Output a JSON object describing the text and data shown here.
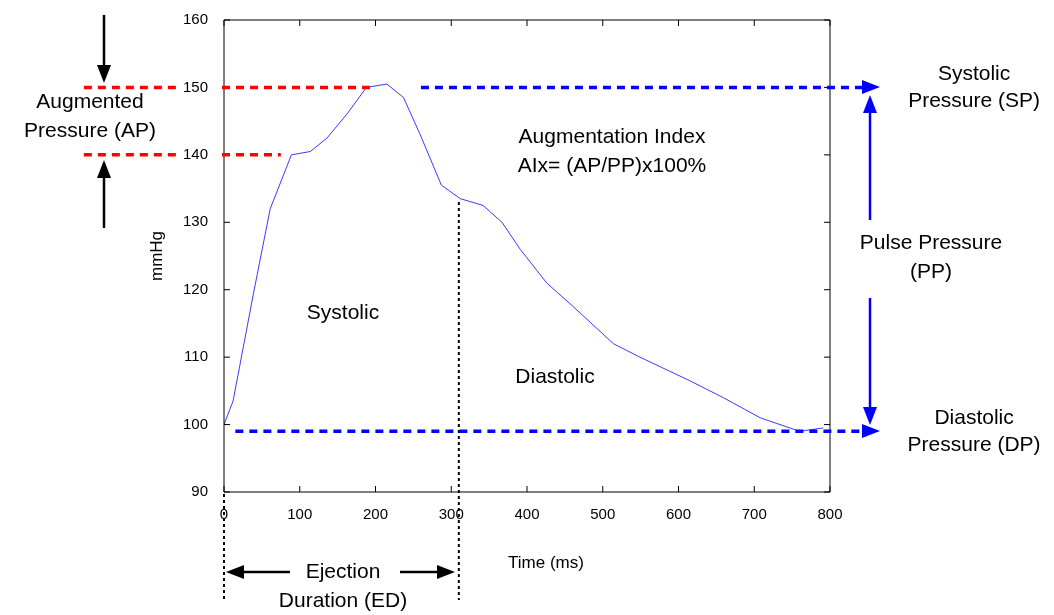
{
  "chart_data": {
    "type": "line",
    "xlabel": "Time (ms)",
    "ylabel": "mmHg",
    "xlim": [
      0,
      800
    ],
    "ylim": [
      90,
      160
    ],
    "xticks": [
      0,
      100,
      200,
      300,
      400,
      500,
      600,
      700,
      800
    ],
    "yticks": [
      90,
      100,
      110,
      120,
      130,
      140,
      150,
      160
    ],
    "grid": false,
    "legend": false,
    "marker": "none",
    "line_style": "solid",
    "series": [
      {
        "color": "#3b3bff",
        "x": [
          0,
          12,
          39,
          61,
          89,
          114,
          136,
          162,
          188,
          215,
          237,
          259,
          287,
          312,
          342,
          367,
          391,
          426,
          461,
          514,
          549,
          615,
          659,
          708,
          760,
          791
        ],
        "values": [
          100,
          103.5,
          119.5,
          132,
          140,
          140.5,
          142.5,
          146,
          150,
          150.5,
          148.5,
          143,
          135.5,
          133.5,
          132.5,
          130,
          126,
          121,
          117.5,
          112,
          110,
          106.5,
          104,
          101,
          99,
          99.5
        ]
      }
    ],
    "ref_lines": [
      {
        "axis": "y",
        "value": 150,
        "color": "#ff0000",
        "line_style": "dashed"
      },
      {
        "axis": "y",
        "value": 140,
        "color": "#ff0000",
        "line_style": "dashed"
      },
      {
        "axis": "y",
        "value": 150,
        "label": "Systolic Pressure (SP)",
        "color": "#0000ff",
        "line_style": "dashed"
      },
      {
        "axis": "y",
        "value": 99,
        "label": "Diastolic Pressure (DP)",
        "color": "#0000ff",
        "line_style": "dashed"
      },
      {
        "axis": "x",
        "value": 310,
        "color": "#000000",
        "line_style": "dotted"
      }
    ],
    "annotations": [
      "Augmented Pressure (AP)",
      "Pulse Pressure (PP)",
      "Ejection Duration (ED)",
      "Augmentation Index AIx= (AP/PP)x100%",
      "Systolic",
      "Diastolic"
    ]
  }
}
